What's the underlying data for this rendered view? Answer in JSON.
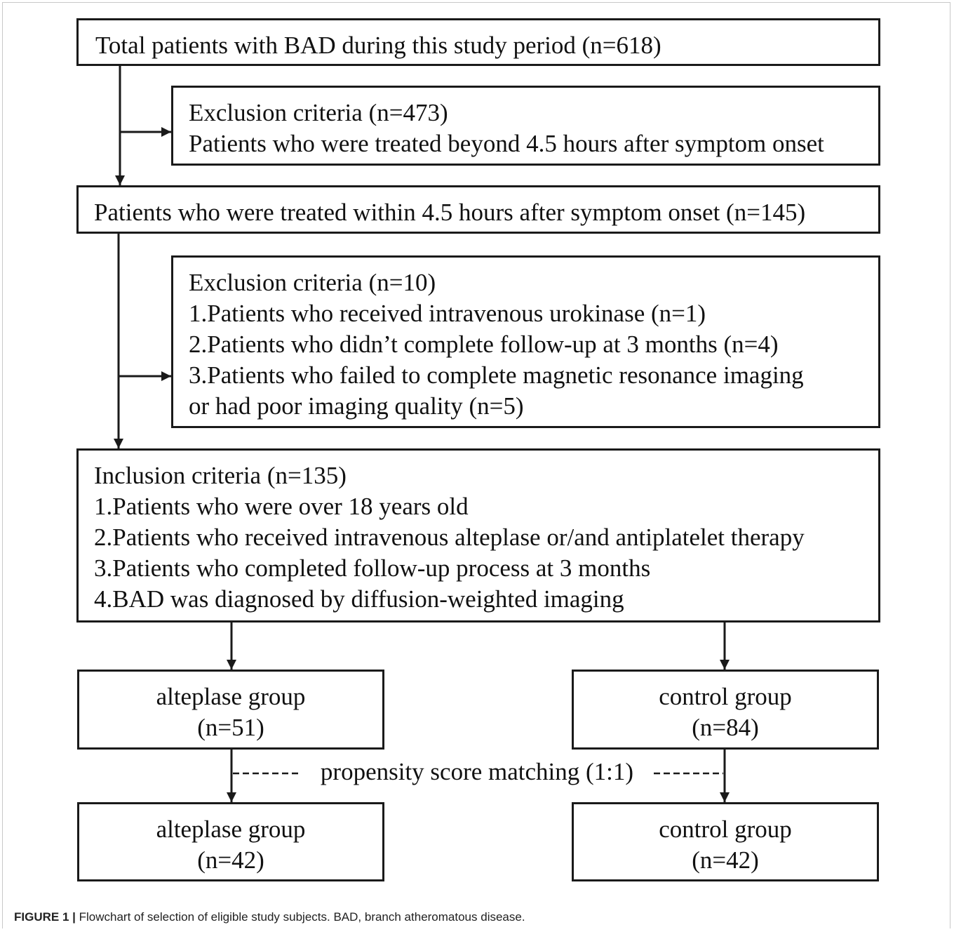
{
  "flowchart": {
    "total": {
      "text": "Total patients with BAD during this study period (n=618)"
    },
    "exclusion1": {
      "lines": [
        "Exclusion criteria (n=473)",
        "Patients who were treated beyond 4.5 hours after symptom onset"
      ]
    },
    "within": {
      "text": "Patients who were treated within 4.5 hours after symptom onset (n=145)"
    },
    "exclusion2": {
      "lines": [
        "Exclusion criteria (n=10)",
        "1.Patients who received intravenous urokinase (n=1)",
        "2.Patients who didn’t complete follow-up at 3 months (n=4)",
        "3.Patients who failed to complete magnetic resonance imaging",
        "or had poor imaging quality (n=5)"
      ]
    },
    "inclusion": {
      "lines": [
        "Inclusion criteria (n=135)",
        "1.Patients who were over 18 years old",
        "2.Patients who received intravenous alteplase or/and antiplatelet therapy",
        "3.Patients who completed follow-up process at 3 months",
        "4.BAD was diagnosed by diffusion-weighted imaging"
      ]
    },
    "alteplase_before": {
      "label": "alteplase group",
      "n": "(n=51)"
    },
    "control_before": {
      "label": "control group",
      "n": "(n=84)"
    },
    "matching": "propensity score matching (1:1)",
    "alteplase_after": {
      "label": "alteplase group",
      "n": "(n=42)"
    },
    "control_after": {
      "label": "control group",
      "n": "(n=42)"
    }
  },
  "caption": {
    "label": "FIGURE 1 |",
    "text": " Flowchart of selection of eligible study subjects. BAD, branch atheromatous disease."
  },
  "colors": {
    "line": "#1a1a1a",
    "frame": "#c8c8c8"
  }
}
